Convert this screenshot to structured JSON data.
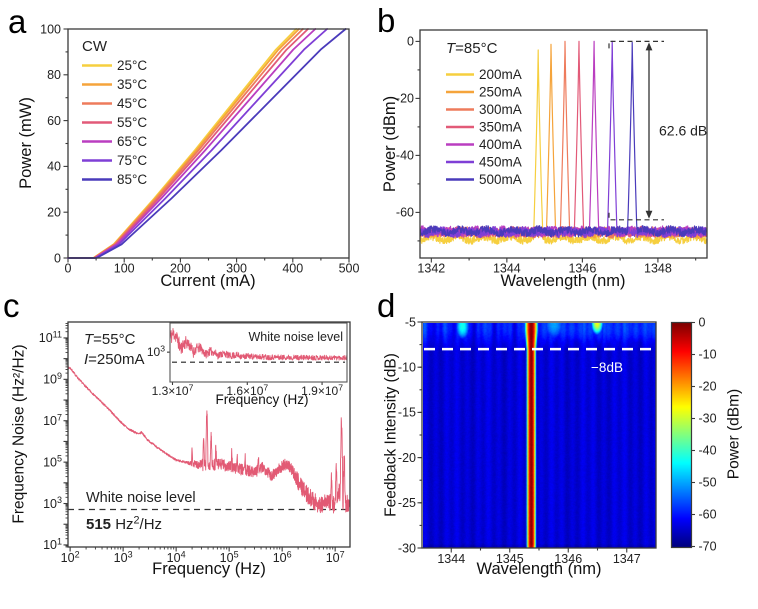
{
  "chart_data": [
    {
      "id": "a",
      "type": "line",
      "xlabel": "Current (mA)",
      "ylabel": "Power (mW)",
      "xlim": [
        0,
        500
      ],
      "ylim": [
        0,
        100
      ],
      "xticks": [
        0,
        100,
        200,
        300,
        400,
        500
      ],
      "xminors": [
        50,
        150,
        250,
        350,
        450
      ],
      "yticks": [
        0,
        20,
        40,
        60,
        80,
        100
      ],
      "yminors": [
        10,
        30,
        50,
        70,
        90
      ],
      "legend_title": "CW",
      "li_shape": [
        [
          0,
          0
        ],
        [
          0.1,
          6
        ],
        [
          0.3,
          26
        ],
        [
          0.5,
          47
        ],
        [
          0.7,
          69
        ],
        [
          0.9,
          91
        ],
        [
          1,
          100
        ]
      ],
      "series": [
        {
          "name": "25°C",
          "color": "#F6CF3F",
          "threshold_mA": 45,
          "i_at_100mW_mA": 406
        },
        {
          "name": "35°C",
          "color": "#F5A43B",
          "threshold_mA": 45.5,
          "i_at_100mW_mA": 411
        },
        {
          "name": "45°C",
          "color": "#EE7B5C",
          "threshold_mA": 46,
          "i_at_100mW_mA": 418
        },
        {
          "name": "55°C",
          "color": "#E25A78",
          "threshold_mA": 47,
          "i_at_100mW_mA": 427
        },
        {
          "name": "65°C",
          "color": "#BA3EC0",
          "threshold_mA": 48,
          "i_at_100mW_mA": 440
        },
        {
          "name": "75°C",
          "color": "#7F3FD6",
          "threshold_mA": 49.5,
          "i_at_100mW_mA": 461
        },
        {
          "name": "85°C",
          "color": "#4A3BBB",
          "threshold_mA": 51,
          "i_at_100mW_mA": 494
        }
      ]
    },
    {
      "id": "b",
      "type": "line",
      "xlabel": "Wavelength (nm)",
      "ylabel": "Power (dBm)",
      "xlim": [
        1341.7,
        1349.3
      ],
      "ylim": [
        -76,
        4
      ],
      "xticks": [
        1342,
        1344,
        1346,
        1348
      ],
      "xminors": [
        1343,
        1345,
        1347,
        1349
      ],
      "yticks": [
        0,
        -20,
        -40,
        -60
      ],
      "yminors": [
        -10,
        -30,
        -50,
        -70
      ],
      "annotation": [
        {
          "t": "T",
          "i": true
        },
        {
          "t": "=85°C"
        }
      ],
      "span_label": "62.6 dB",
      "span_db": 62.6,
      "series": [
        {
          "name": "200mA",
          "color": "#F6CF3F",
          "peak_nm": 1344.83,
          "peak_dbm": -3,
          "floor_dbm": -69.2
        },
        {
          "name": "250mA",
          "color": "#F5A43B",
          "peak_nm": 1345.17,
          "peak_dbm": -1,
          "floor_dbm": -67.2
        },
        {
          "name": "300mA",
          "color": "#EE7B5C",
          "peak_nm": 1345.54,
          "peak_dbm": 0,
          "floor_dbm": -67.0
        },
        {
          "name": "350mA",
          "color": "#E25A78",
          "peak_nm": 1345.91,
          "peak_dbm": 0,
          "floor_dbm": -66.8
        },
        {
          "name": "400mA",
          "color": "#BA3EC0",
          "peak_nm": 1346.31,
          "peak_dbm": 0,
          "floor_dbm": -66.7
        },
        {
          "name": "450mA",
          "color": "#7F3FD6",
          "peak_nm": 1346.79,
          "peak_dbm": 0,
          "floor_dbm": -66.9
        },
        {
          "name": "500mA",
          "color": "#4A3BBB",
          "peak_nm": 1347.32,
          "peak_dbm": -0.4,
          "floor_dbm": -66.6
        }
      ]
    },
    {
      "id": "c",
      "type": "line",
      "xscale": "log",
      "yscale": "log",
      "xlabel": "Frequency (Hz)",
      "ylabel": "Frequency Noise (Hz²/Hz)",
      "xlim_log": [
        1.96,
        7.28
      ],
      "ylim_log": [
        0.9,
        11.77
      ],
      "xticks_log": [
        2,
        3,
        4,
        5,
        6,
        7
      ],
      "yticks_log": [
        1,
        2,
        3,
        4,
        5,
        6,
        7,
        8,
        9,
        10,
        11
      ],
      "ylabeled_log": [
        1,
        3,
        5,
        7,
        9,
        11
      ],
      "color": "#E25A74",
      "annotations": {
        "line1": [
          {
            "t": "T",
            "i": true
          },
          {
            "t": "=55°C"
          }
        ],
        "line2": [
          {
            "t": "I",
            "i": true
          },
          {
            "t": "=250mA"
          }
        ],
        "white_noise": "White noise level",
        "value": [
          {
            "t": "515",
            "b": true
          },
          {
            "t": " Hz^2/Hz"
          }
        ]
      },
      "white_noise_level_hz2hz": 515,
      "base_points_loglog": [
        [
          2,
          9.55
        ],
        [
          2.15,
          9.05
        ],
        [
          2.35,
          8.5
        ],
        [
          2.55,
          8.0
        ],
        [
          2.75,
          7.5
        ],
        [
          2.95,
          6.95
        ],
        [
          3.1,
          6.6
        ],
        [
          3.3,
          6.35
        ],
        [
          3.35,
          6.45
        ],
        [
          3.45,
          6.1
        ],
        [
          3.7,
          5.6
        ],
        [
          4.0,
          5.1
        ],
        [
          4.25,
          4.95
        ],
        [
          4.55,
          4.85
        ],
        [
          4.85,
          4.9
        ],
        [
          5.05,
          4.75
        ],
        [
          5.3,
          4.6
        ],
        [
          5.5,
          4.55
        ],
        [
          5.65,
          4.75
        ],
        [
          5.8,
          4.35
        ],
        [
          5.95,
          4.7
        ],
        [
          6.05,
          4.9
        ],
        [
          6.15,
          4.75
        ],
        [
          6.3,
          4.1
        ],
        [
          6.45,
          3.5
        ],
        [
          6.6,
          3.1
        ],
        [
          6.75,
          2.9
        ],
        [
          6.85,
          3.15
        ],
        [
          6.95,
          2.9
        ],
        [
          7.02,
          3.1
        ],
        [
          7.08,
          3.6
        ],
        [
          7.13,
          3.2
        ],
        [
          7.18,
          2.95
        ],
        [
          7.28,
          3.05
        ]
      ],
      "spikes_loglog": [
        [
          4.58,
          7.35
        ],
        [
          4.52,
          6.1
        ],
        [
          4.66,
          6.3
        ],
        [
          4.75,
          5.7
        ],
        [
          4.3,
          5.6
        ],
        [
          5.05,
          5.5
        ],
        [
          5.15,
          5.4
        ],
        [
          5.3,
          5.2
        ],
        [
          5.55,
          5.3
        ],
        [
          6.93,
          4.4
        ],
        [
          7.02,
          4.6
        ],
        [
          7.12,
          6.9
        ],
        [
          7.17,
          5.2
        ]
      ],
      "inset": {
        "xlim": [
          12900000,
          20000000
        ],
        "ylim_log": [
          2.14,
          3.84
        ],
        "xticks": [
          {
            "v": 13000000,
            "label": "1.3×10^7"
          },
          {
            "v": 16000000,
            "label": "1.6×10^7"
          },
          {
            "v": 19000000,
            "label": "1.9×10^7"
          }
        ],
        "ytick": {
          "log": 3,
          "label": "10^3"
        },
        "xlabel": "Frequency (Hz)",
        "note": "White noise level",
        "dashed_level_hz2hz": 515
      }
    },
    {
      "id": "d",
      "type": "heatmap",
      "xlabel": "Wavelength (nm)",
      "ylabel": "Feedback Intensity (dB)",
      "xlim": [
        1343.5,
        1347.5
      ],
      "ylim": [
        -30,
        -5
      ],
      "xticks": [
        1344,
        1345,
        1346,
        1347
      ],
      "yticks": [
        -5,
        -10,
        -15,
        -20,
        -25,
        -30
      ],
      "dashed_line_db": -8,
      "dashed_label": "−8dB",
      "peak_wavelength_nm": 1345.36,
      "background_dbm": -64,
      "features": [
        {
          "type": "blob",
          "x_nm": 1344.18,
          "y_db": -5.4,
          "peak_dbm": -42
        },
        {
          "type": "blob",
          "x_nm": 1346.49,
          "y_db": -5.0,
          "peak_dbm": -27
        },
        {
          "type": "halo",
          "x_nm": 1345.75,
          "y_db": -5.2,
          "peak_dbm": -50
        }
      ],
      "colorbar": {
        "label": "Power (dBm)",
        "ticks": [
          0,
          -10,
          -20,
          -30,
          -40,
          -50,
          -60,
          -70
        ],
        "range": [
          -70,
          0
        ]
      }
    }
  ]
}
